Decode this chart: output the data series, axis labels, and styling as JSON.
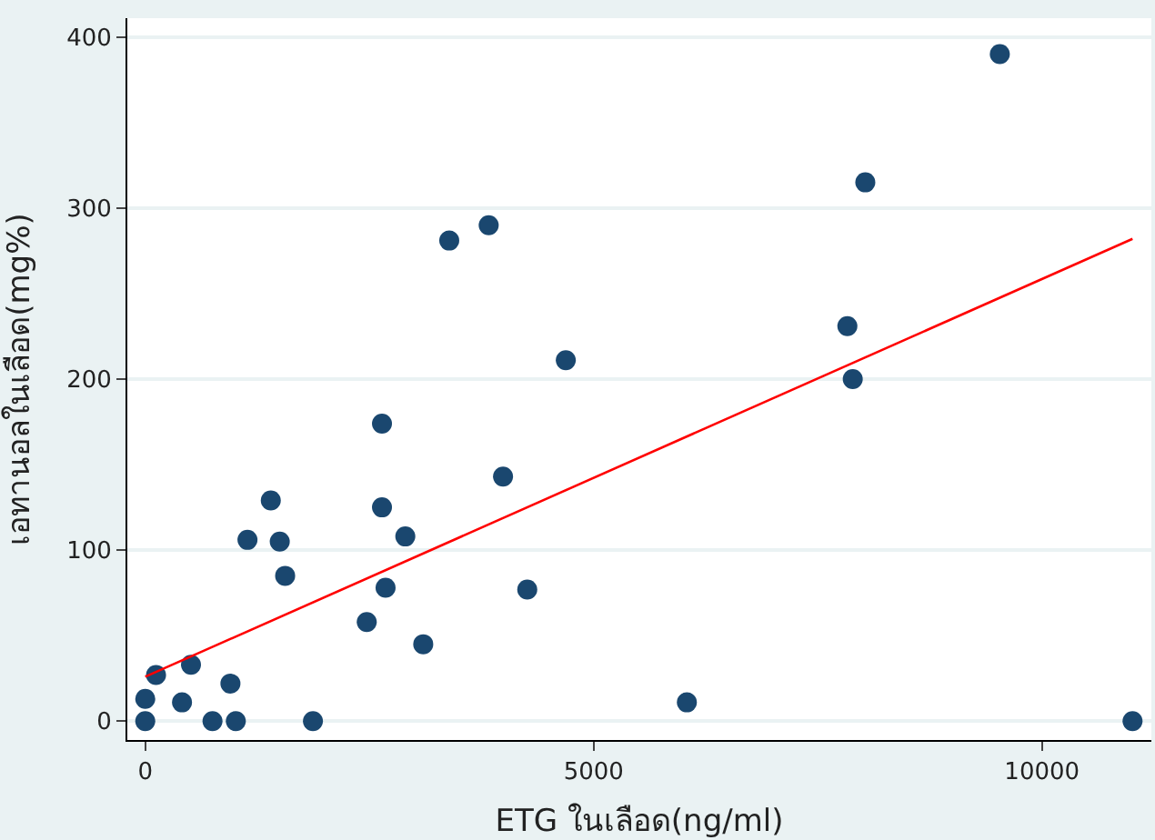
{
  "chart_data": {
    "type": "scatter",
    "xlabel": "ETG ในเลือด(ng/ml)",
    "ylabel": "เอทานอลในเลือด(mg%)",
    "xlim": [
      -200,
      11220
    ],
    "xticks": [
      0,
      5000,
      10000
    ],
    "ylim": [
      -11,
      411
    ],
    "yticks": [
      0,
      100,
      200,
      300,
      400
    ],
    "grid": "y",
    "legend": false,
    "series": [
      {
        "marker": "circle",
        "color": "#1a476f",
        "x": [
          0,
          0,
          120,
          410,
          510,
          750,
          950,
          1010,
          1140,
          1400,
          1500,
          1560,
          1870,
          2470,
          2640,
          2640,
          2680,
          2900,
          3100,
          3390,
          3830,
          3990,
          4260,
          4690,
          6040,
          7830,
          7890,
          8030,
          9530,
          11010
        ],
        "values": [
          0,
          13,
          27,
          11,
          33,
          0,
          22,
          0,
          106,
          129,
          105,
          85,
          0,
          58,
          174,
          125,
          78,
          108,
          45,
          281,
          290,
          143,
          77,
          211,
          11,
          231,
          200,
          315,
          390,
          0
        ]
      },
      {
        "type": "line",
        "color": "#ff0000",
        "x": [
          0,
          11010
        ],
        "values": [
          26,
          282
        ]
      }
    ]
  }
}
